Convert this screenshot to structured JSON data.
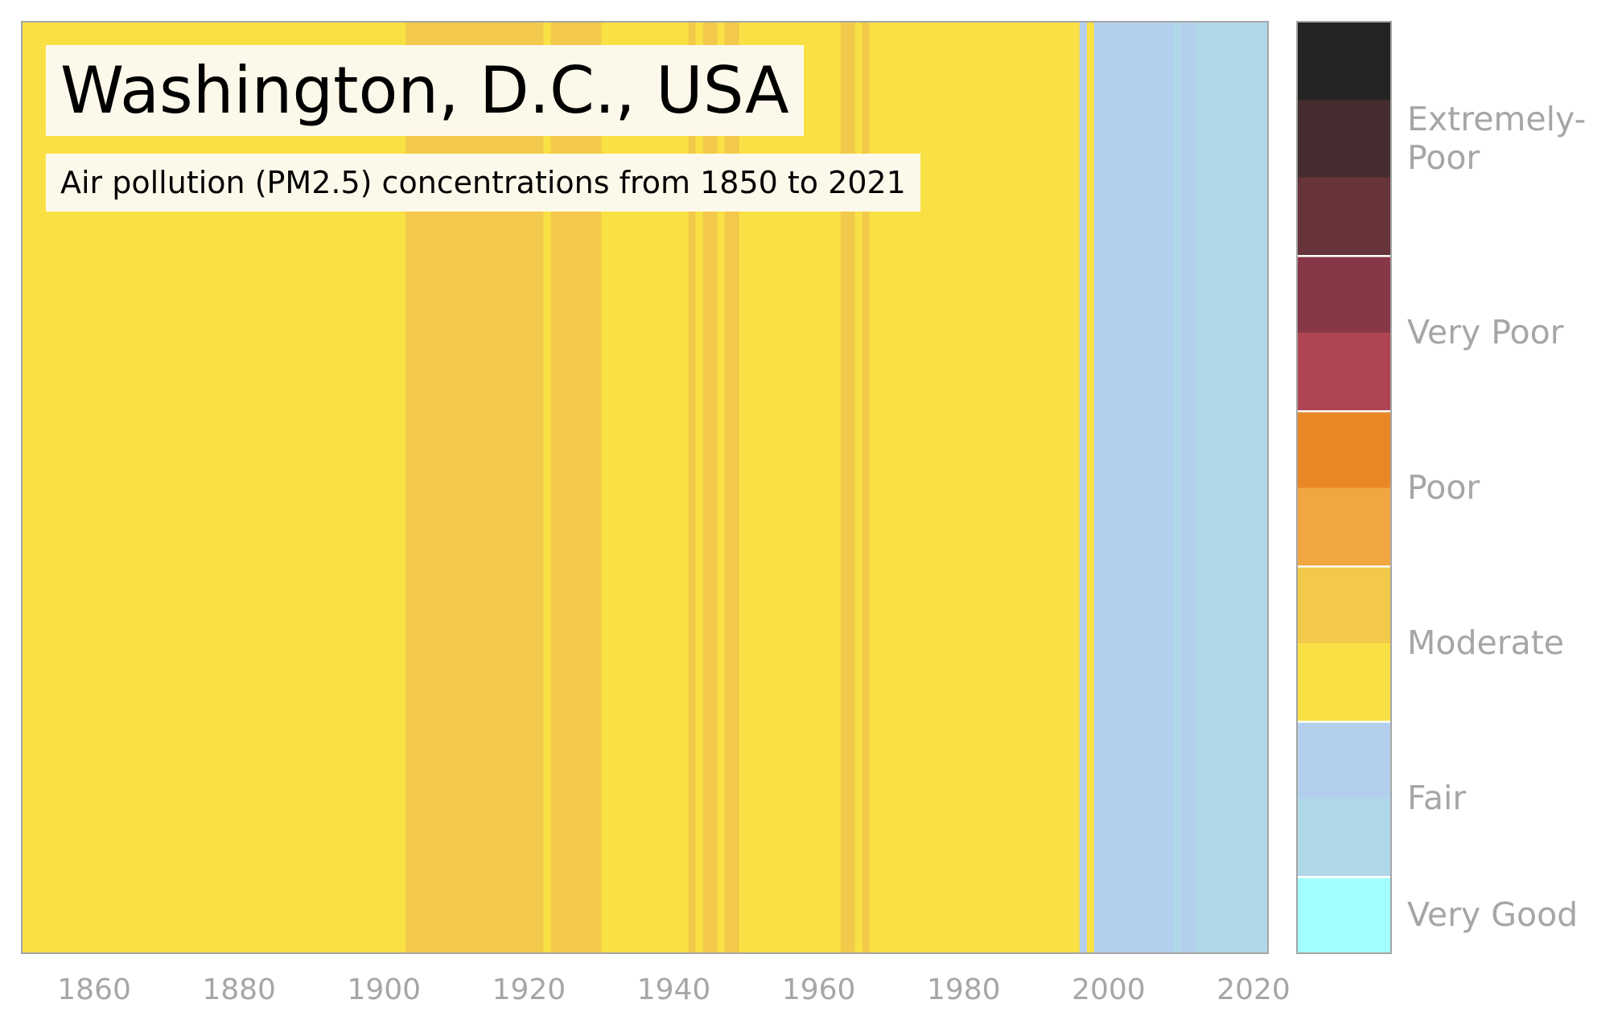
{
  "chart_data": {
    "type": "heatmap",
    "title": "Washington, D.C., USA",
    "subtitle": "Air pollution (PM2.5) concentrations from 1850 to 2021",
    "x_range": [
      1850,
      2021
    ],
    "x_ticks": [
      1860,
      1880,
      1900,
      1920,
      1940,
      1960,
      1980,
      2000,
      2020
    ],
    "years": {
      "start": 1850,
      "end": 2021,
      "periods": [
        {
          "from": 1850,
          "to": 1902,
          "category": "Moderate (low)",
          "color": "#f9e145"
        },
        {
          "from": 1903,
          "to": 1921,
          "category": "Moderate (high)",
          "color": "#f2c94a"
        },
        {
          "from": 1922,
          "to": 1922,
          "category": "Moderate (low)",
          "color": "#f9e145"
        },
        {
          "from": 1923,
          "to": 1929,
          "category": "Moderate (high)",
          "color": "#f2c94a"
        },
        {
          "from": 1930,
          "to": 1941,
          "category": "Moderate (low)",
          "color": "#f9e145"
        },
        {
          "from": 1942,
          "to": 1942,
          "category": "Moderate (high)",
          "color": "#f2c94a"
        },
        {
          "from": 1943,
          "to": 1943,
          "category": "Moderate (low)",
          "color": "#f9e145"
        },
        {
          "from": 1944,
          "to": 1945,
          "category": "Moderate (high)",
          "color": "#f2c94a"
        },
        {
          "from": 1946,
          "to": 1946,
          "category": "Moderate (low)",
          "color": "#f9e145"
        },
        {
          "from": 1947,
          "to": 1948,
          "category": "Moderate (high)",
          "color": "#f2c94a"
        },
        {
          "from": 1949,
          "to": 1962,
          "category": "Moderate (low)",
          "color": "#f9e145"
        },
        {
          "from": 1963,
          "to": 1964,
          "category": "Moderate (high)",
          "color": "#f2c94a"
        },
        {
          "from": 1965,
          "to": 1965,
          "category": "Moderate (low)",
          "color": "#f9e145"
        },
        {
          "from": 1966,
          "to": 1966,
          "category": "Moderate (high)",
          "color": "#f2c94a"
        },
        {
          "from": 1967,
          "to": 1995,
          "category": "Moderate (low)",
          "color": "#f9e145"
        },
        {
          "from": 1996,
          "to": 1996,
          "category": "Fair (high)",
          "color": "#b2d0ee"
        },
        {
          "from": 1997,
          "to": 1997,
          "category": "Moderate (low)",
          "color": "#f9e145"
        },
        {
          "from": 1998,
          "to": 2008,
          "category": "Fair (high)",
          "color": "#b2d0ee"
        },
        {
          "from": 2009,
          "to": 2009,
          "category": "Fair (low)",
          "color": "#b0d8e8"
        },
        {
          "from": 2010,
          "to": 2011,
          "category": "Fair (high)",
          "color": "#b2d0ee"
        },
        {
          "from": 2012,
          "to": 2021,
          "category": "Fair (low)",
          "color": "#b0d8e8"
        }
      ]
    },
    "legend": {
      "placement": "right",
      "groups": [
        {
          "label": "Very Good",
          "colors": [
            "#a3ffff"
          ]
        },
        {
          "label": "Fair",
          "colors": [
            "#b0d8e8",
            "#b2d0ee"
          ]
        },
        {
          "label": "Moderate",
          "colors": [
            "#f9e145",
            "#f2c94a"
          ]
        },
        {
          "label": "Poor",
          "colors": [
            "#f0a742",
            "#e98727"
          ]
        },
        {
          "label": "Very Poor",
          "colors": [
            "#ae4454",
            "#873746"
          ]
        },
        {
          "label": "Extremely-\nPoor",
          "label_lines": [
            "Extremely-",
            "Poor"
          ],
          "colors": [
            "#673539",
            "#452d2f",
            "#242424"
          ]
        }
      ]
    },
    "grid": false
  }
}
